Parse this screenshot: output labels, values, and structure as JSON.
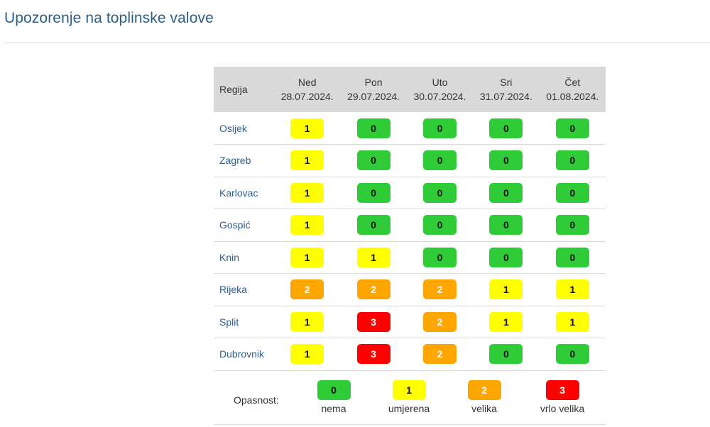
{
  "page": {
    "title": "Upozorenje na toplinske valove"
  },
  "table": {
    "region_header": "Regija",
    "days": [
      {
        "name": "Ned",
        "date": "28.07.2024."
      },
      {
        "name": "Pon",
        "date": "29.07.2024."
      },
      {
        "name": "Uto",
        "date": "30.07.2024."
      },
      {
        "name": "Sri",
        "date": "31.07.2024."
      },
      {
        "name": "Čet",
        "date": "01.08.2024."
      }
    ],
    "rows": [
      {
        "region": "Osijek",
        "levels": [
          "1",
          "0",
          "0",
          "0",
          "0"
        ]
      },
      {
        "region": "Zagreb",
        "levels": [
          "1",
          "0",
          "0",
          "0",
          "0"
        ]
      },
      {
        "region": "Karlovac",
        "levels": [
          "1",
          "0",
          "0",
          "0",
          "0"
        ]
      },
      {
        "region": "Gospić",
        "levels": [
          "1",
          "0",
          "0",
          "0",
          "0"
        ]
      },
      {
        "region": "Knin",
        "levels": [
          "1",
          "1",
          "0",
          "0",
          "0"
        ]
      },
      {
        "region": "Rijeka",
        "levels": [
          "2",
          "2",
          "2",
          "1",
          "1"
        ]
      },
      {
        "region": "Split",
        "levels": [
          "1",
          "3",
          "2",
          "1",
          "1"
        ]
      },
      {
        "region": "Dubrovnik",
        "levels": [
          "1",
          "3",
          "2",
          "0",
          "0"
        ]
      }
    ]
  },
  "legend": {
    "label": "Opasnost:",
    "items": [
      {
        "level": "0",
        "text": "nema",
        "color": "#2fcc37"
      },
      {
        "level": "1",
        "text": "umjerena",
        "color": "#ffff00"
      },
      {
        "level": "2",
        "text": "velika",
        "color": "#ffa500"
      },
      {
        "level": "3",
        "text": "vrlo velika",
        "color": "#ff0000"
      }
    ]
  }
}
